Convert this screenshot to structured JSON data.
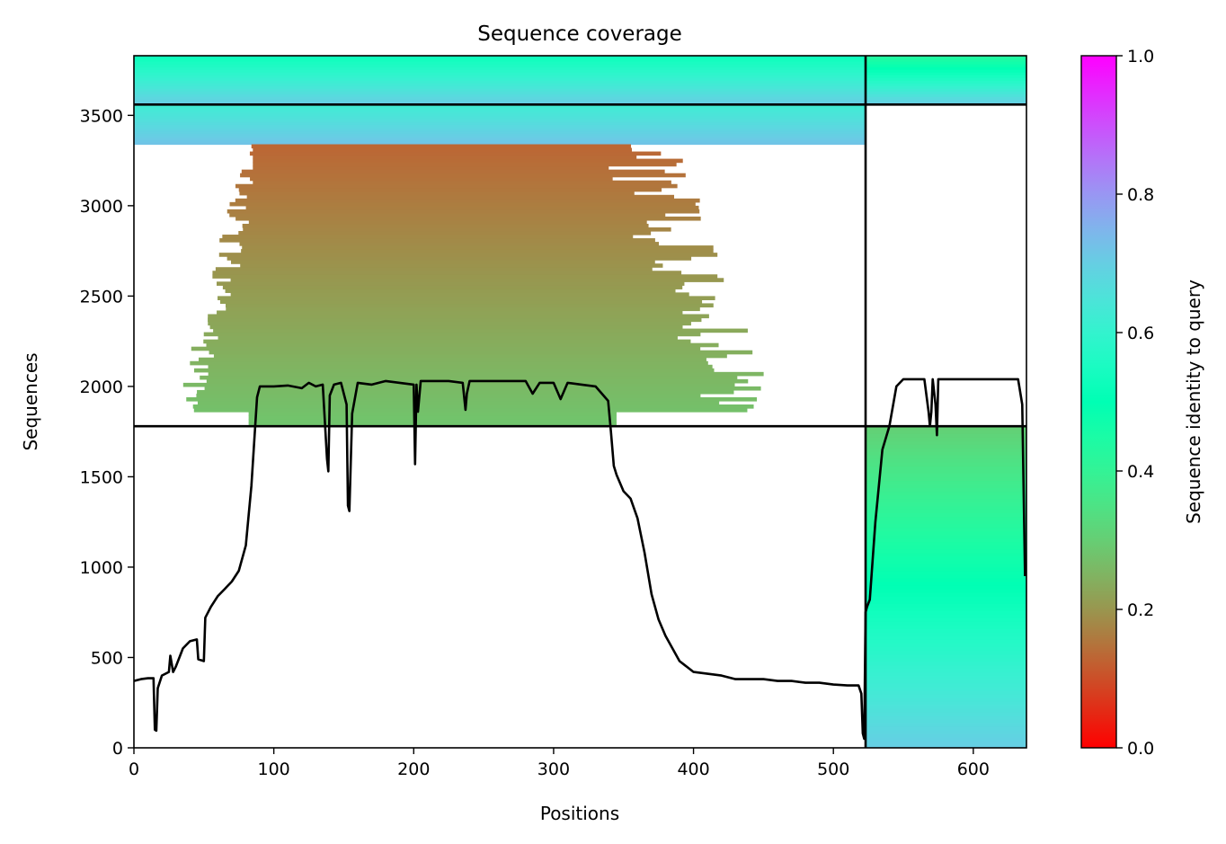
{
  "chart_data": {
    "type": "heatmap",
    "title": "Sequence coverage",
    "xlabel": "Positions",
    "ylabel": "Sequences",
    "xlim": [
      0,
      638
    ],
    "ylim": [
      0,
      3830
    ],
    "x_ticks": [
      0,
      100,
      200,
      300,
      400,
      500,
      600
    ],
    "y_ticks": [
      0,
      500,
      1000,
      1500,
      2000,
      2500,
      3000,
      3500
    ],
    "colorbar": {
      "label": "Sequence identity to query",
      "range": [
        0.0,
        1.0
      ],
      "ticks": [
        "0.0",
        "0.2",
        "0.4",
        "0.6",
        "0.8",
        "1.0"
      ],
      "colormap": "rainbow"
    },
    "chain_boundary_positions": [
      523
    ],
    "block_boundary_sequences": [
      1780,
      3560
    ],
    "msa_blocks": [
      {
        "x": [
          0,
          523
        ],
        "y": [
          3560,
          3830
        ],
        "identity": [
          0.7,
          0.52
        ],
        "note": "paired block"
      },
      {
        "x": [
          523,
          638
        ],
        "y": [
          3560,
          3830
        ],
        "identity": [
          0.7,
          0.42
        ]
      },
      {
        "x": [
          0,
          523
        ],
        "y": [
          3340,
          3560
        ],
        "identity": [
          0.72,
          0.62
        ]
      },
      {
        "x": [
          25,
          370
        ],
        "y": [
          1780,
          3340
        ],
        "identity": [
          0.28,
          0.13
        ],
        "ragged_extent_x": [
          0,
          525
        ]
      },
      {
        "x": [
          523,
          638
        ],
        "y": [
          0,
          1780
        ],
        "identity": [
          0.7,
          0.3
        ]
      }
    ],
    "series": [
      {
        "type": "line",
        "color": "#000000",
        "x": [
          0,
          5,
          10,
          14,
          15,
          16,
          17,
          20,
          25,
          26,
          28,
          30,
          35,
          40,
          45,
          46,
          50,
          51,
          55,
          60,
          65,
          70,
          75,
          80,
          84,
          86,
          88,
          90,
          100,
          110,
          120,
          125,
          130,
          135,
          138,
          139,
          140,
          143,
          148,
          152,
          153,
          154,
          156,
          160,
          170,
          180,
          190,
          200,
          201,
          202,
          203,
          205,
          215,
          225,
          235,
          237,
          238,
          240,
          250,
          260,
          270,
          280,
          285,
          290,
          300,
          305,
          310,
          320,
          330,
          339,
          341,
          343,
          345,
          350,
          355,
          360,
          365,
          370,
          375,
          380,
          390,
          400,
          410,
          420,
          430,
          440,
          450,
          460,
          470,
          480,
          490,
          500,
          510,
          518,
          520,
          521,
          522,
          523,
          524,
          526,
          530,
          535,
          540,
          545,
          550,
          565,
          568,
          569,
          570,
          571,
          573,
          574,
          575,
          580,
          600,
          620,
          632,
          635,
          637
        ],
        "y": [
          370,
          380,
          385,
          385,
          100,
          95,
          330,
          400,
          420,
          510,
          420,
          450,
          550,
          590,
          600,
          490,
          480,
          720,
          780,
          840,
          880,
          920,
          980,
          1120,
          1450,
          1700,
          1940,
          2000,
          2000,
          2005,
          1990,
          2020,
          2000,
          2010,
          1600,
          1530,
          1950,
          2010,
          2020,
          1900,
          1340,
          1310,
          1850,
          2020,
          2010,
          2030,
          2020,
          2010,
          1570,
          2010,
          1860,
          2030,
          2030,
          2030,
          2020,
          1870,
          1960,
          2030,
          2030,
          2030,
          2030,
          2030,
          1960,
          2020,
          2020,
          1930,
          2020,
          2010,
          2000,
          1920,
          1750,
          1560,
          1510,
          1420,
          1380,
          1270,
          1080,
          850,
          710,
          620,
          480,
          420,
          410,
          400,
          380,
          380,
          380,
          370,
          370,
          360,
          360,
          350,
          345,
          345,
          300,
          80,
          50,
          750,
          780,
          820,
          1250,
          1650,
          1780,
          2000,
          2040,
          2040,
          1860,
          1780,
          1860,
          2040,
          1900,
          1730,
          2040,
          2040,
          2040,
          2040,
          2040,
          1900,
          950
        ]
      }
    ]
  }
}
